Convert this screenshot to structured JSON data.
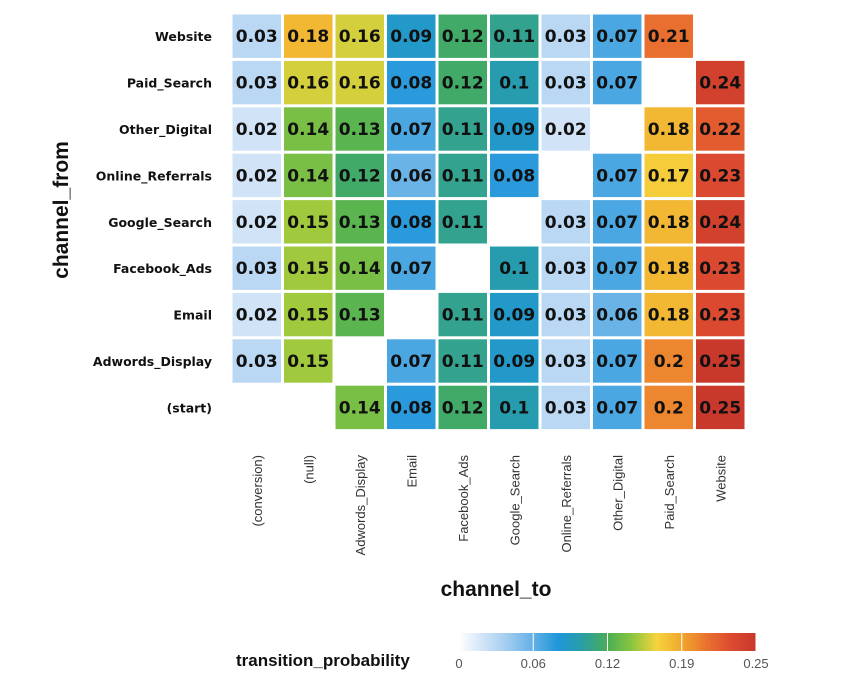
{
  "chart_data": {
    "type": "heatmap",
    "xlabel": "channel_to",
    "ylabel": "channel_from",
    "x_categories": [
      "(conversion)",
      "(null)",
      "Adwords_Display",
      "Email",
      "Facebook_Ads",
      "Google_Search",
      "Online_Referrals",
      "Other_Digital",
      "Paid_Search",
      "Website"
    ],
    "y_categories": [
      "Website",
      "Paid_Search",
      "Other_Digital",
      "Online_Referrals",
      "Google_Search",
      "Facebook_Ads",
      "Email",
      "Adwords_Display",
      "(start)"
    ],
    "values": [
      [
        "0.03",
        "0.18",
        "0.16",
        "0.09",
        "0.12",
        "0.11",
        "0.03",
        "0.07",
        "0.21",
        null
      ],
      [
        "0.03",
        "0.16",
        "0.16",
        "0.08",
        "0.12",
        "0.1",
        "0.03",
        "0.07",
        null,
        "0.24"
      ],
      [
        "0.02",
        "0.14",
        "0.13",
        "0.07",
        "0.11",
        "0.09",
        "0.02",
        null,
        "0.18",
        "0.22"
      ],
      [
        "0.02",
        "0.14",
        "0.12",
        "0.06",
        "0.11",
        "0.08",
        null,
        "0.07",
        "0.17",
        "0.23"
      ],
      [
        "0.02",
        "0.15",
        "0.13",
        "0.08",
        "0.11",
        null,
        "0.03",
        "0.07",
        "0.18",
        "0.24"
      ],
      [
        "0.03",
        "0.15",
        "0.14",
        "0.07",
        null,
        "0.1",
        "0.03",
        "0.07",
        "0.18",
        "0.23"
      ],
      [
        "0.02",
        "0.15",
        "0.13",
        null,
        "0.11",
        "0.09",
        "0.03",
        "0.06",
        "0.18",
        "0.23"
      ],
      [
        "0.03",
        "0.15",
        null,
        "0.07",
        "0.11",
        "0.09",
        "0.03",
        "0.07",
        "0.2",
        "0.25"
      ],
      [
        null,
        null,
        "0.14",
        "0.08",
        "0.12",
        "0.1",
        "0.03",
        "0.07",
        "0.2",
        "0.25"
      ]
    ],
    "legend": {
      "title": "transition_probability",
      "position": "bottom",
      "range": [
        0,
        0.25
      ],
      "ticks": [
        "0",
        "0.06",
        "0.12",
        "0.19",
        "0.25"
      ],
      "colors": [
        "#ffffff",
        "#cfe3f7",
        "#9fcbef",
        "#63b0e6",
        "#1f96da",
        "#2a9ea4",
        "#4aae55",
        "#8cc63f",
        "#f6d33c",
        "#f0a72e",
        "#e9722f",
        "#dc4a31",
        "#c8382b"
      ]
    }
  }
}
